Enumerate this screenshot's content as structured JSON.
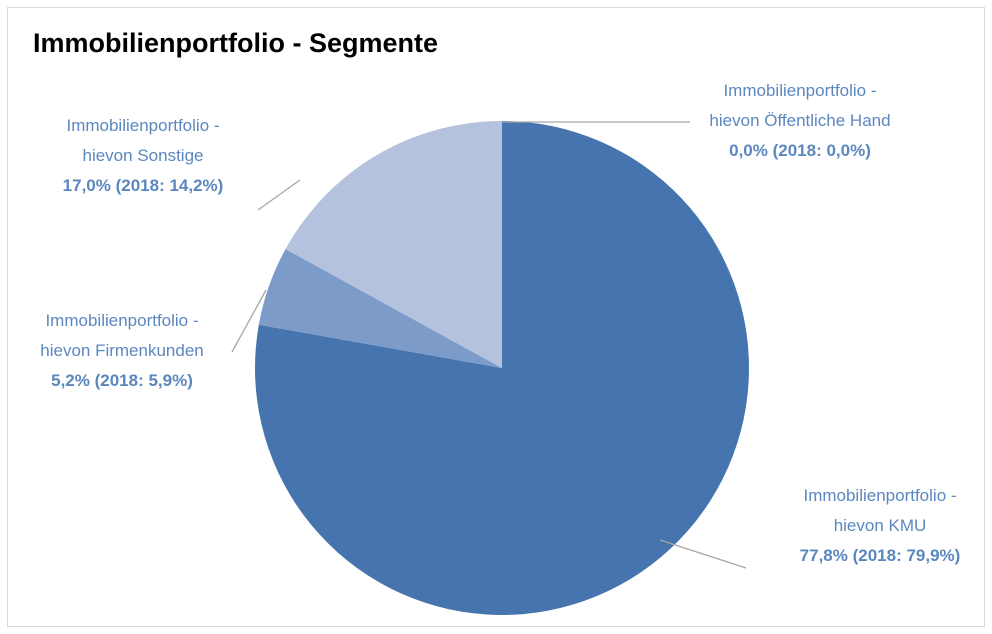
{
  "chart_data": {
    "type": "pie",
    "title": "Immobilienportfolio - Segmente",
    "categories": [
      "Immobilienportfolio -\nhievon KMU",
      "Immobilienportfolio -\nhievon Firmenkunden",
      "Immobilienportfolio -\nhievon Sonstige",
      "Immobilienportfolio -\nhievon Öffentliche Hand"
    ],
    "values": [
      77.8,
      5.2,
      17.0,
      0.0
    ],
    "value_labels": [
      "77,8% (2018: 79,9%)",
      "5,2% (2018: 5,9%)",
      "17,0% (2018: 14,2%)",
      "0,0% (2018: 0,0%)"
    ],
    "colors": [
      "#4674ae",
      "#7d9bc9",
      "#b4c2de",
      "#c9d3e8"
    ]
  }
}
